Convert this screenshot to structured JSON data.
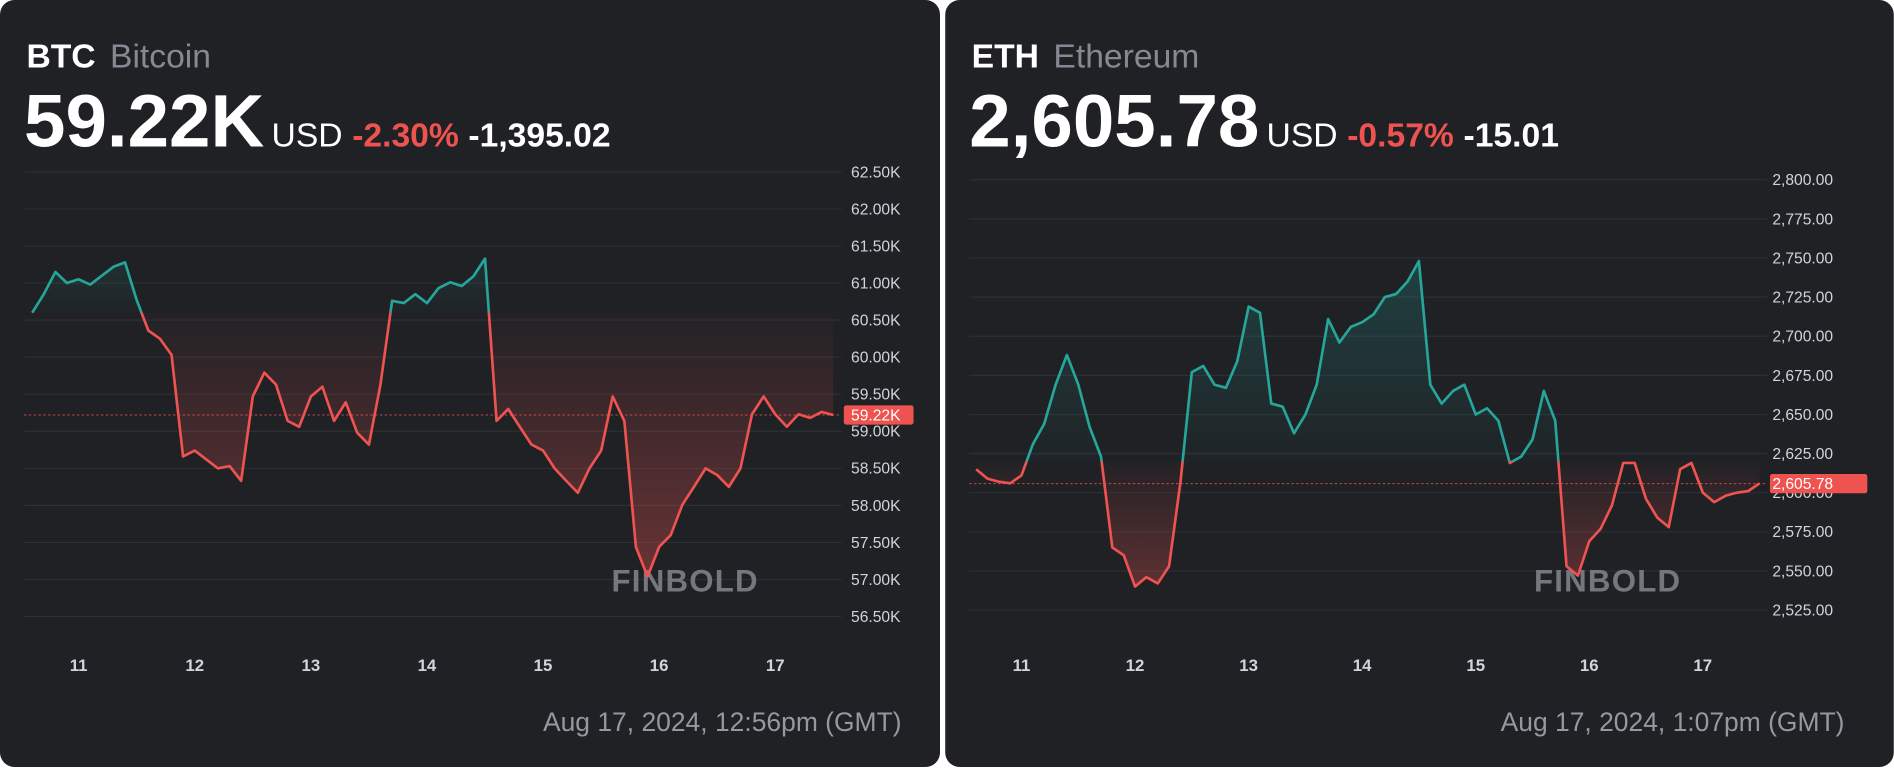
{
  "chart_data": [
    {
      "type": "line",
      "ticker": "BTC",
      "name": "Bitcoin",
      "price": "59.22K",
      "currency": "USD",
      "change_percent": "-2.30%",
      "change": "-1,395.02",
      "timestamp": "Aug 17, 2024, 12:56pm (GMT)",
      "watermark": "FINBOLD",
      "x": [
        10.6,
        10.7,
        10.8,
        10.9,
        11.0,
        11.1,
        11.2,
        11.3,
        11.4,
        11.5,
        11.6,
        11.7,
        11.8,
        11.9,
        12.0,
        12.1,
        12.2,
        12.3,
        12.4,
        12.5,
        12.6,
        12.7,
        12.8,
        12.9,
        13.0,
        13.1,
        13.2,
        13.3,
        13.4,
        13.5,
        13.6,
        13.7,
        13.8,
        13.9,
        14.0,
        14.1,
        14.2,
        14.3,
        14.4,
        14.5,
        14.6,
        14.7,
        14.8,
        14.9,
        15.0,
        15.1,
        15.2,
        15.3,
        15.4,
        15.5,
        15.6,
        15.7,
        15.8,
        15.9,
        16.0,
        16.1,
        16.2,
        16.3,
        16.4,
        16.5,
        16.6,
        16.7,
        16.8,
        16.9,
        17.0,
        17.1,
        17.2,
        17.3,
        17.4,
        17.5
      ],
      "values": [
        60600,
        60850,
        61150,
        61000,
        61050,
        60980,
        61100,
        61220,
        61280,
        60770,
        60360,
        60250,
        60030,
        58660,
        58740,
        58620,
        58500,
        58530,
        58330,
        59470,
        59790,
        59630,
        59140,
        59060,
        59470,
        59600,
        59140,
        59390,
        58980,
        58820,
        59630,
        60760,
        60730,
        60850,
        60730,
        60930,
        61010,
        60960,
        61090,
        61330,
        59140,
        59300,
        59060,
        58820,
        58740,
        58500,
        58330,
        58170,
        58500,
        58740,
        59470,
        59140,
        57440,
        57040,
        57440,
        57600,
        58010,
        58250,
        58500,
        58410,
        58250,
        58500,
        59230,
        59470,
        59230,
        59060,
        59230,
        59180,
        59260,
        59220
      ],
      "baseline": 60600,
      "last_value": 59220,
      "last_value_label": "59.22K",
      "up_color": "#26a69a",
      "down_color": "#ef5350",
      "xlim": [
        10.53,
        17.57
      ],
      "xticks": [
        11,
        12,
        13,
        14,
        15,
        16,
        17
      ],
      "ylim": [
        56060,
        62710
      ],
      "yticks": [
        {
          "value": 62500,
          "label": "62.50K"
        },
        {
          "value": 62000,
          "label": "62.00K"
        },
        {
          "value": 61500,
          "label": "61.50K"
        },
        {
          "value": 61000,
          "label": "61.00K"
        },
        {
          "value": 60500,
          "label": "60.50K"
        },
        {
          "value": 60000,
          "label": "60.00K"
        },
        {
          "value": 59500,
          "label": "59.50K"
        },
        {
          "value": 59000,
          "label": "59.00K"
        },
        {
          "value": 58500,
          "label": "58.50K"
        },
        {
          "value": 58000,
          "label": "58.00K"
        },
        {
          "value": 57500,
          "label": "57.50K"
        },
        {
          "value": 57000,
          "label": "57.00K"
        },
        {
          "value": 56500,
          "label": "56.50K"
        }
      ],
      "grid": true
    },
    {
      "type": "line",
      "ticker": "ETH",
      "name": "Ethereum",
      "price": "2,605.78",
      "currency": "USD",
      "change_percent": "-0.57%",
      "change": "-15.01",
      "timestamp": "Aug 17, 2024, 1:07pm (GMT)",
      "watermark": "FINBOLD",
      "x": [
        10.6,
        10.7,
        10.8,
        10.9,
        11.0,
        11.1,
        11.2,
        11.3,
        11.4,
        11.5,
        11.6,
        11.7,
        11.8,
        11.9,
        12.0,
        12.1,
        12.2,
        12.3,
        12.4,
        12.5,
        12.6,
        12.7,
        12.8,
        12.9,
        13.0,
        13.1,
        13.2,
        13.3,
        13.4,
        13.5,
        13.6,
        13.7,
        13.8,
        13.9,
        14.0,
        14.1,
        14.2,
        14.3,
        14.4,
        14.5,
        14.6,
        14.7,
        14.8,
        14.9,
        15.0,
        15.1,
        15.2,
        15.3,
        15.4,
        15.5,
        15.6,
        15.7,
        15.8,
        15.9,
        16.0,
        16.1,
        16.2,
        16.3,
        16.4,
        16.5,
        16.6,
        16.7,
        16.8,
        16.9,
        17.0,
        17.1,
        17.2,
        17.3,
        17.4,
        17.5
      ],
      "values": [
        2615,
        2609,
        2607,
        2606,
        2611,
        2631,
        2644,
        2669,
        2688,
        2669,
        2642,
        2623,
        2565,
        2560,
        2540,
        2546,
        2542,
        2553,
        2607,
        2677,
        2681,
        2669,
        2667,
        2684,
        2719,
        2715,
        2657,
        2655,
        2638,
        2650,
        2669,
        2711,
        2696,
        2706,
        2709,
        2714,
        2725,
        2727,
        2735,
        2748,
        2669,
        2657,
        2665,
        2669,
        2650,
        2654,
        2646,
        2619,
        2623,
        2634,
        2665,
        2646,
        2553,
        2547,
        2569,
        2577,
        2592,
        2619,
        2619,
        2596,
        2584,
        2578,
        2615,
        2619,
        2600,
        2594,
        2598,
        2600,
        2601,
        2606
      ],
      "baseline": 2620,
      "last_value": 2605.78,
      "last_value_label": "2,605.78",
      "up_color": "#26a69a",
      "down_color": "#ef5350",
      "xlim": [
        10.54,
        17.57
      ],
      "xticks": [
        11,
        12,
        13,
        14,
        15,
        16,
        17
      ],
      "ylim": [
        2500,
        2815
      ],
      "yticks": [
        {
          "value": 2800,
          "label": "2,800.00"
        },
        {
          "value": 2775,
          "label": "2,775.00"
        },
        {
          "value": 2750,
          "label": "2,750.00"
        },
        {
          "value": 2725,
          "label": "2,725.00"
        },
        {
          "value": 2700,
          "label": "2,700.00"
        },
        {
          "value": 2675,
          "label": "2,675.00"
        },
        {
          "value": 2650,
          "label": "2,650.00"
        },
        {
          "value": 2625,
          "label": "2,625.00"
        },
        {
          "value": 2600,
          "label": "2,600.00"
        },
        {
          "value": 2575,
          "label": "2,575.00"
        },
        {
          "value": 2550,
          "label": "2,550.00"
        },
        {
          "value": 2525,
          "label": "2,525.00"
        }
      ],
      "grid": true
    }
  ]
}
